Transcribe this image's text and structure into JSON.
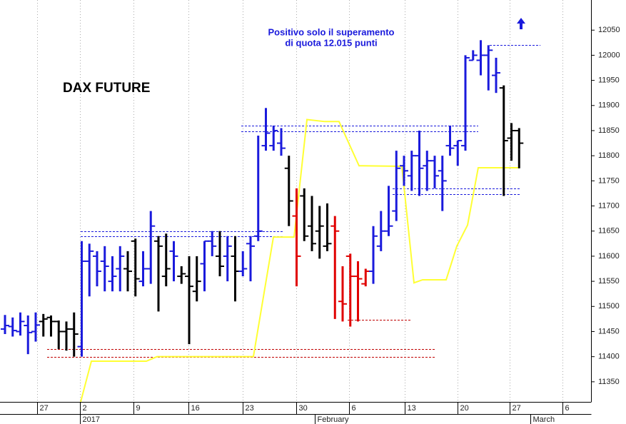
{
  "chart_data": {
    "type": "ohlc",
    "title": "DAX FUTURE",
    "annotation": [
      "Positivo solo il superamento",
      "di quota 12.015 punti"
    ],
    "ylim": [
      11310,
      12110
    ],
    "yticks": [
      11350,
      11400,
      11450,
      11500,
      11550,
      11600,
      11650,
      11700,
      11750,
      11800,
      11850,
      11900,
      11950,
      12000,
      12050
    ],
    "xlim": [
      -0.65,
      76.37
    ],
    "xticks": [
      {
        "value": 4.19,
        "label": "27"
      },
      {
        "value": 9.77,
        "label": "2"
      },
      {
        "value": 16.74,
        "label": "9"
      },
      {
        "value": 23.91,
        "label": "16"
      },
      {
        "value": 30.98,
        "label": "23"
      },
      {
        "value": 37.95,
        "label": "30"
      },
      {
        "value": 44.84,
        "label": "6"
      },
      {
        "value": 52.09,
        "label": "13"
      },
      {
        "value": 58.98,
        "label": "20"
      },
      {
        "value": 65.77,
        "label": "27"
      },
      {
        "value": 72.65,
        "label": "6"
      }
    ],
    "xticks_period": [
      {
        "value": 9.77,
        "label": "2017"
      },
      {
        "value": 40.37,
        "label": "February"
      },
      {
        "value": 68.47,
        "label": "March"
      }
    ],
    "grid": true,
    "colors": {
      "up": "#1a1adc",
      "neutral": "#000000",
      "down": "#e00000"
    },
    "ohlc": {
      "open": [
        11455,
        11460,
        11450,
        11462,
        11450,
        11470,
        11478,
        11470,
        11450,
        11455,
        11420,
        11590,
        11600,
        11590,
        11550,
        11575,
        11575,
        11630,
        11550,
        11575,
        11630,
        11560,
        11610,
        11560,
        11560,
        11530,
        11585,
        11630,
        11600,
        11600,
        11600,
        11570,
        11625,
        11640,
        11820,
        11820,
        11825,
        11775,
        11680,
        11720,
        11660,
        11650,
        11620,
        11660,
        11510,
        11600,
        11560,
        11545,
        11570,
        11620,
        11650,
        11690,
        11780,
        11760,
        11800,
        11780,
        11790,
        11770,
        11820,
        11820,
        11820,
        11990,
        11990,
        12000,
        11960,
        11935,
        11835,
        11850
      ],
      "high": [
        11483,
        11478,
        11488,
        11482,
        11488,
        11485,
        11482,
        11472,
        11470,
        11488,
        11630,
        11625,
        11610,
        11620,
        11600,
        11620,
        11610,
        11635,
        11610,
        11690,
        11640,
        11645,
        11630,
        11580,
        11600,
        11600,
        11630,
        11650,
        11650,
        11640,
        11640,
        11610,
        11640,
        11840,
        11895,
        11860,
        11855,
        11800,
        11735,
        11735,
        11720,
        11700,
        11705,
        11680,
        11580,
        11605,
        11590,
        11575,
        11660,
        11690,
        11740,
        11810,
        11800,
        11810,
        11850,
        11810,
        11800,
        11800,
        11860,
        11830,
        12000,
        12010,
        12030,
        12020,
        11995,
        11940,
        11865,
        11855
      ],
      "low": [
        11445,
        11440,
        11442,
        11405,
        11430,
        11440,
        11440,
        11415,
        11412,
        11400,
        11400,
        11520,
        11540,
        11530,
        11530,
        11530,
        11530,
        11520,
        11540,
        11545,
        11490,
        11540,
        11550,
        11545,
        11425,
        11510,
        11530,
        11600,
        11560,
        11550,
        11510,
        11560,
        11550,
        11630,
        11810,
        11810,
        11800,
        11660,
        11540,
        11630,
        11610,
        11595,
        11610,
        11475,
        11470,
        11460,
        11470,
        11540,
        11545,
        11610,
        11640,
        11670,
        11740,
        11730,
        11720,
        11730,
        11735,
        11690,
        11800,
        11780,
        11810,
        11990,
        11960,
        11930,
        11925,
        11720,
        11790,
        11775
      ],
      "close": [
        11462,
        11452,
        11470,
        11448,
        11463,
        11475,
        11470,
        11450,
        11455,
        11445,
        11590,
        11610,
        11570,
        11580,
        11560,
        11600,
        11570,
        11555,
        11575,
        11660,
        11620,
        11575,
        11600,
        11565,
        11540,
        11550,
        11630,
        11620,
        11580,
        11620,
        11570,
        11575,
        11620,
        11650,
        11845,
        11850,
        11815,
        11710,
        11600,
        11640,
        11625,
        11660,
        11625,
        11650,
        11505,
        11560,
        11555,
        11570,
        11640,
        11650,
        11660,
        11775,
        11770,
        11800,
        11775,
        11790,
        11760,
        11750,
        11815,
        11830,
        11995,
        12000,
        12000,
        12010,
        11965,
        11830,
        11850,
        11825
      ],
      "trend": [
        "up",
        "up",
        "up",
        "up",
        "up",
        "neutral",
        "neutral",
        "neutral",
        "neutral",
        "neutral",
        "up",
        "up",
        "up",
        "up",
        "up",
        "up",
        "neutral",
        "neutral",
        "up",
        "up",
        "neutral",
        "neutral",
        "up",
        "neutral",
        "neutral",
        "neutral",
        "up",
        "up",
        "neutral",
        "up",
        "neutral",
        "up",
        "up",
        "up",
        "up",
        "up",
        "up",
        "neutral",
        "down",
        "neutral",
        "neutral",
        "neutral",
        "neutral",
        "down",
        "down",
        "down",
        "down",
        "down",
        "up",
        "up",
        "up",
        "up",
        "up",
        "up",
        "up",
        "up",
        "up",
        "up",
        "up",
        "up",
        "up",
        "up",
        "up",
        "up",
        "up",
        "neutral",
        "neutral",
        "neutral"
      ]
    },
    "stop_line": {
      "color": "#ffff33",
      "x": [
        9.86,
        11.26,
        18.42,
        19.81,
        32.37,
        34.98,
        37.67,
        39.35,
        41.67,
        43.53,
        46.14,
        51.72,
        53.3,
        54.42,
        57.49,
        58.88,
        60.28,
        61.67,
        67.07
      ],
      "values": [
        11310,
        11391,
        11391,
        11400,
        11400,
        11638,
        11638,
        11872,
        11868,
        11868,
        11780,
        11779,
        11547,
        11553,
        11553,
        11620,
        11662,
        11776,
        11776
      ]
    },
    "levels": [
      {
        "value": 11650,
        "x": [
          9.86,
          36.37
        ],
        "color": "#1a1adc"
      },
      {
        "value": 11639,
        "x": [
          9.86,
          36.37
        ],
        "color": "#1a1adc"
      },
      {
        "value": 11860,
        "x": [
          30.79,
          61.67
        ],
        "color": "#1a1adc"
      },
      {
        "value": 11849,
        "x": [
          30.79,
          61.67
        ],
        "color": "#1a1adc"
      },
      {
        "value": 12020,
        "x": [
          63.16,
          69.77
        ],
        "color": "#1a1adc"
      },
      {
        "value": 11735,
        "x": [
          50.51,
          67.07
        ],
        "color": "#1a1adc"
      },
      {
        "value": 11723,
        "x": [
          50.51,
          67.07
        ],
        "color": "#1a1adc"
      },
      {
        "value": 11474,
        "x": [
          44.65,
          53.02
        ],
        "color": "#c00000"
      },
      {
        "value": 11415,
        "x": [
          5.49,
          56.09
        ],
        "color": "#c00000"
      },
      {
        "value": 11400,
        "x": [
          5.49,
          56.09
        ],
        "color": "#c00000"
      }
    ]
  }
}
